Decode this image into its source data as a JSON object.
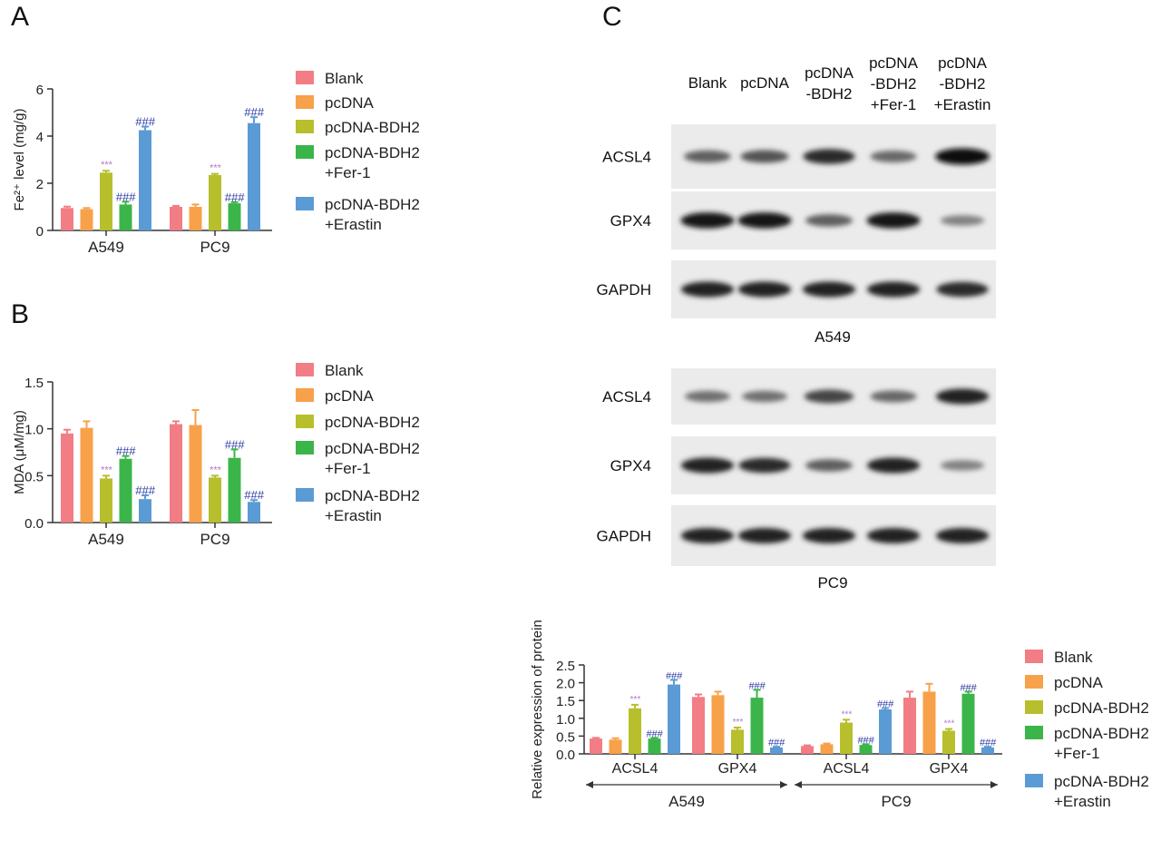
{
  "panels": {
    "a": "A",
    "b": "B",
    "c": "C"
  },
  "colors": {
    "Blank": "#f27d84",
    "pcDNA": "#f7a14a",
    "pcDNA-BDH2": "#b7bf2c",
    "pcDNA-BDH2 +Fer-1": "#3bb54a",
    "pcDNA-BDH2 +Erastin": "#5b9bd5",
    "star": "#b177c8",
    "hash": "#2e3aa3"
  },
  "legend": {
    "items": [
      {
        "lines": [
          "Blank"
        ]
      },
      {
        "lines": [
          "pcDNA"
        ]
      },
      {
        "lines": [
          "pcDNA-BDH2"
        ]
      },
      {
        "lines": [
          "pcDNA-BDH2",
          "+Fer-1"
        ]
      },
      {
        "lines": [
          "pcDNA-BDH2",
          "+Erastin"
        ]
      }
    ]
  },
  "blot": {
    "lane_headers": [
      [
        "Blank"
      ],
      [
        "pcDNA"
      ],
      [
        "pcDNA",
        "-BDH2"
      ],
      [
        "pcDNA",
        "-BDH2",
        "+Fer-1"
      ],
      [
        "pcDNA",
        "-BDH2",
        "+Erastin"
      ]
    ],
    "groups": [
      {
        "caption": "A549",
        "rows": [
          {
            "label": "ACSL4",
            "intensity": [
              0.55,
              0.62,
              0.85,
              0.5,
              1.0
            ]
          },
          {
            "label": "GPX4",
            "intensity": [
              0.95,
              0.95,
              0.55,
              0.95,
              0.35
            ]
          },
          {
            "label": "GAPDH",
            "intensity": [
              0.9,
              0.9,
              0.9,
              0.9,
              0.85
            ]
          }
        ]
      },
      {
        "caption": "PC9",
        "rows": [
          {
            "label": "ACSL4",
            "intensity": [
              0.45,
              0.45,
              0.7,
              0.5,
              0.9
            ]
          },
          {
            "label": "GPX4",
            "intensity": [
              0.9,
              0.85,
              0.55,
              0.9,
              0.35
            ]
          },
          {
            "label": "GAPDH",
            "intensity": [
              0.9,
              0.9,
              0.9,
              0.9,
              0.9
            ]
          }
        ]
      }
    ]
  },
  "chart_data": [
    {
      "id": "A",
      "type": "bar",
      "ylabel": "Fe²⁺ level (mg/g)",
      "ylim": [
        0,
        6
      ],
      "yticks": [
        0,
        2,
        4,
        6
      ],
      "categories": [
        "A549",
        "PC9"
      ],
      "series": [
        {
          "name": "Blank",
          "values": [
            0.95,
            1.0
          ],
          "err": [
            0.06,
            0.04
          ]
        },
        {
          "name": "pcDNA",
          "values": [
            0.9,
            1.0
          ],
          "err": [
            0.05,
            0.1
          ]
        },
        {
          "name": "pcDNA-BDH2",
          "values": [
            2.45,
            2.35
          ],
          "err": [
            0.08,
            0.05
          ]
        },
        {
          "name": "pcDNA-BDH2 +Fer-1",
          "values": [
            1.1,
            1.15
          ],
          "err": [
            0.12,
            0.05
          ]
        },
        {
          "name": "pcDNA-BDH2 +Erastin",
          "values": [
            4.25,
            4.55
          ],
          "err": [
            0.15,
            0.25
          ]
        }
      ],
      "annotations": [
        {
          "cat": 0,
          "series": 2,
          "text": "***",
          "kind": "star"
        },
        {
          "cat": 0,
          "series": 3,
          "text": "###",
          "kind": "hash"
        },
        {
          "cat": 0,
          "series": 4,
          "text": "###",
          "kind": "hash"
        },
        {
          "cat": 1,
          "series": 2,
          "text": "***",
          "kind": "star"
        },
        {
          "cat": 1,
          "series": 3,
          "text": "###",
          "kind": "hash"
        },
        {
          "cat": 1,
          "series": 4,
          "text": "###",
          "kind": "hash"
        }
      ]
    },
    {
      "id": "B",
      "type": "bar",
      "ylabel": "MDA (μM/mg)",
      "ylim": [
        0,
        1.5
      ],
      "yticks": [
        "0.0",
        "0.5",
        "1.0",
        "1.5"
      ],
      "categories": [
        "A549",
        "PC9"
      ],
      "series": [
        {
          "name": "Blank",
          "values": [
            0.95,
            1.05
          ],
          "err": [
            0.04,
            0.03
          ]
        },
        {
          "name": "pcDNA",
          "values": [
            1.01,
            1.04
          ],
          "err": [
            0.07,
            0.16
          ]
        },
        {
          "name": "pcDNA-BDH2",
          "values": [
            0.47,
            0.48
          ],
          "err": [
            0.03,
            0.02
          ]
        },
        {
          "name": "pcDNA-BDH2 +Fer-1",
          "values": [
            0.68,
            0.69
          ],
          "err": [
            0.03,
            0.09
          ]
        },
        {
          "name": "pcDNA-BDH2 +Erastin",
          "values": [
            0.25,
            0.22
          ],
          "err": [
            0.04,
            0.02
          ]
        }
      ],
      "annotations": [
        {
          "cat": 0,
          "series": 2,
          "text": "***",
          "kind": "star"
        },
        {
          "cat": 0,
          "series": 3,
          "text": "###",
          "kind": "hash"
        },
        {
          "cat": 0,
          "series": 4,
          "text": "###",
          "kind": "hash"
        },
        {
          "cat": 1,
          "series": 2,
          "text": "***",
          "kind": "star"
        },
        {
          "cat": 1,
          "series": 3,
          "text": "###",
          "kind": "hash"
        },
        {
          "cat": 1,
          "series": 4,
          "text": "###",
          "kind": "hash"
        }
      ]
    },
    {
      "id": "C-quant",
      "type": "bar",
      "ylabel": "Relative expression of protein",
      "ylim": [
        0,
        2.5
      ],
      "yticks": [
        "0.0",
        "0.5",
        "1.0",
        "1.5",
        "2.0",
        "2.5"
      ],
      "categories": [
        "ACSL4",
        "GPX4",
        "ACSL4",
        "GPX4"
      ],
      "cell_lines": [
        "A549",
        "PC9"
      ],
      "series": [
        {
          "name": "Blank",
          "values": [
            0.43,
            1.6,
            0.22,
            1.58
          ],
          "err": [
            0.02,
            0.07,
            0.02,
            0.17
          ]
        },
        {
          "name": "pcDNA",
          "values": [
            0.4,
            1.65,
            0.27,
            1.75
          ],
          "err": [
            0.04,
            0.1,
            0.02,
            0.22
          ]
        },
        {
          "name": "pcDNA-BDH2",
          "values": [
            1.28,
            0.68,
            0.88,
            0.65
          ],
          "err": [
            0.1,
            0.06,
            0.08,
            0.05
          ]
        },
        {
          "name": "pcDNA-BDH2 +Fer-1",
          "values": [
            0.43,
            1.58,
            0.25,
            1.69
          ],
          "err": [
            0.02,
            0.22,
            0.02,
            0.06
          ]
        },
        {
          "name": "pcDNA-BDH2 +Erastin",
          "values": [
            1.95,
            0.18,
            1.25,
            0.18
          ],
          "err": [
            0.13,
            0.02,
            0.04,
            0.02
          ]
        }
      ],
      "annotations": [
        {
          "cat": 0,
          "series": 2,
          "text": "***",
          "kind": "star"
        },
        {
          "cat": 0,
          "series": 3,
          "text": "###",
          "kind": "hash"
        },
        {
          "cat": 0,
          "series": 4,
          "text": "###",
          "kind": "hash"
        },
        {
          "cat": 1,
          "series": 2,
          "text": "***",
          "kind": "star"
        },
        {
          "cat": 1,
          "series": 3,
          "text": "###",
          "kind": "hash"
        },
        {
          "cat": 1,
          "series": 4,
          "text": "###",
          "kind": "hash"
        },
        {
          "cat": 2,
          "series": 2,
          "text": "***",
          "kind": "star"
        },
        {
          "cat": 2,
          "series": 3,
          "text": "###",
          "kind": "hash"
        },
        {
          "cat": 2,
          "series": 4,
          "text": "###",
          "kind": "hash"
        },
        {
          "cat": 3,
          "series": 2,
          "text": "***",
          "kind": "star"
        },
        {
          "cat": 3,
          "series": 3,
          "text": "###",
          "kind": "hash"
        },
        {
          "cat": 3,
          "series": 4,
          "text": "###",
          "kind": "hash"
        }
      ]
    }
  ]
}
